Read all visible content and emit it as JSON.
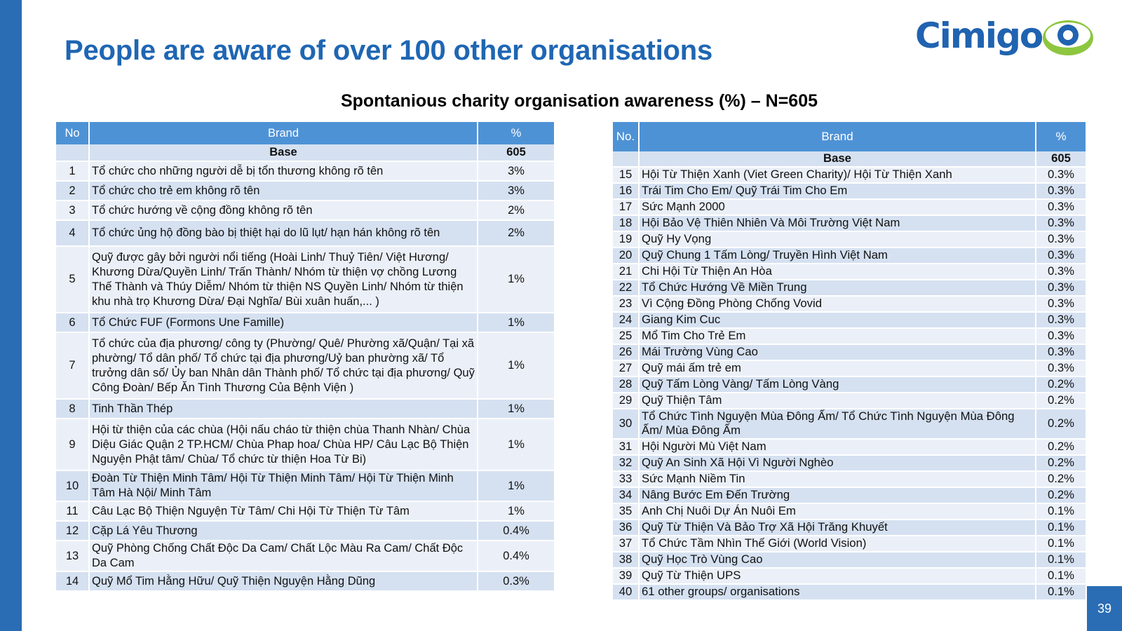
{
  "title": "People are aware of over 100 other organisations",
  "subtitle": "Spontanious charity organisation awareness (%) – N=605",
  "logo": {
    "text": "Cimigo",
    "icon": "eye-icon",
    "colors": {
      "blue": "#2063b0",
      "green": "#8dc63f"
    }
  },
  "page_number": "39",
  "colors": {
    "header": "#4e92d6",
    "row_dark": "#d5e1f1",
    "row_light": "#ebf0f8",
    "title": "#1f66b3",
    "side_bar": "#2a6db5"
  },
  "left_table": {
    "headers": {
      "no": "No",
      "brand": "Brand",
      "pct": "%"
    },
    "base": {
      "label": "Base",
      "value": "605"
    },
    "rows": [
      {
        "no": "1",
        "brand": "Tổ chức cho những người dễ bị tổn thương không rõ tên",
        "pct": "3%"
      },
      {
        "no": "2",
        "brand": "Tổ chức cho trẻ em không rõ tên",
        "pct": "3%"
      },
      {
        "no": "3",
        "brand": "Tổ chức hướng về cộng đồng không rõ tên",
        "pct": "2%"
      },
      {
        "no": "4",
        "brand": "Tổ chức ủng hộ đồng bào bị thiệt hại do lũ lụt/ hạn hán không rõ tên",
        "pct": "2%"
      },
      {
        "no": "5",
        "brand": "Quỹ được gây bởi người nổi tiếng (Hoài Linh/ Thuỷ Tiên/ Việt Hương/ Khương Dừa/Quyền Linh/ Trấn Thành/ Nhóm từ thiện vợ chồng Lương Thế Thành và Thúy Diễm/  Nhóm từ thiện NS Quyền Linh/ Nhóm từ thiện khu nhà trọ Khương Dừa/ Đại Nghĩa/ Bùi xuân huấn,... )",
        "pct": "1%"
      },
      {
        "no": "6",
        "brand": "Tổ Chức FUF (Formons Une Famille)",
        "pct": "1%"
      },
      {
        "no": "7",
        "brand": "Tổ chức của địa phương/ công ty (Phường/ Quê/ Phường xã/Quận/ Tại xã phường/ Tổ dân phố/ Tổ chức tại địa phương/Uỷ ban phường xã/ Tổ trưởng dân số/ Ủy ban Nhân dân Thành phố/ Tổ chức tại địa phương/ Quỹ Công Đoàn/ Bếp Ăn Tình Thương Của Bệnh Viện )",
        "pct": "1%"
      },
      {
        "no": "8",
        "brand": "Tinh Thần Thép",
        "pct": "1%"
      },
      {
        "no": "9",
        "brand": "Hội từ thiện của các chùa (Hội nấu cháo từ thiện chùa Thanh Nhàn/ Chùa Diệu Giác Quận 2 TP.HCM/ Chùa Phap hoa/ Chùa HP/ Câu Lạc Bộ Thiện Nguyện Phật tâm/ Chùa/ Tổ chức từ thiện Hoa Từ Bi)",
        "pct": "1%"
      },
      {
        "no": "10",
        "brand": "Đoàn Từ Thiện Minh Tâm/ Hội Từ Thiện Minh Tâm/ Hội Từ Thiện Minh Tâm Hà Nội/ Minh Tâm",
        "pct": "1%"
      },
      {
        "no": "11",
        "brand": "Câu Lạc Bộ Thiện Nguyện Từ Tâm/ Chi Hội Từ Thiện Từ Tâm",
        "pct": "1%"
      },
      {
        "no": "12",
        "brand": "Cặp Lá Yêu Thương",
        "pct": "0.4%"
      },
      {
        "no": "13",
        "brand": "Quỹ Phòng Chống Chất Độc Da Cam/ Chất Lộc Màu Ra Cam/ Chất Độc Da Cam",
        "pct": "0.4%"
      },
      {
        "no": "14",
        "brand": "Quỹ Mổ Tim Hằng Hữu/ Quỹ Thiện Nguyện Hằng Dũng",
        "pct": "0.3%"
      }
    ]
  },
  "right_table": {
    "headers": {
      "no": "No.",
      "brand": "Brand",
      "pct": "%"
    },
    "base": {
      "label": "Base",
      "value": "605"
    },
    "rows": [
      {
        "no": "15",
        "brand": "Hội Từ Thiện Xanh (Viet Green Charity)/ Hội Từ Thiện Xanh",
        "pct": "0.3%"
      },
      {
        "no": "16",
        "brand": "Trái Tim Cho Em/ Quỹ Trái Tim Cho Em",
        "pct": "0.3%"
      },
      {
        "no": "17",
        "brand": "Sức Mạnh 2000",
        "pct": "0.3%"
      },
      {
        "no": "18",
        "brand": "Hội Bảo Vệ Thiên Nhiên Và Môi Trường Việt Nam",
        "pct": "0.3%"
      },
      {
        "no": "19",
        "brand": "Quỹ Hy Vọng",
        "pct": "0.3%"
      },
      {
        "no": "20",
        "brand": "Quỹ Chung 1 Tấm Lòng/ Truyền Hình Việt Nam",
        "pct": "0.3%"
      },
      {
        "no": "21",
        "brand": "Chi Hội Từ Thiện An Hòa",
        "pct": "0.3%"
      },
      {
        "no": "22",
        "brand": "Tổ Chức Hướng Về Miền Trung",
        "pct": "0.3%"
      },
      {
        "no": "23",
        "brand": "Vì Cộng Đồng Phòng Chống Vovid",
        "pct": "0.3%"
      },
      {
        "no": "24",
        "brand": "Giang Kim Cuc",
        "pct": "0.3%"
      },
      {
        "no": "25",
        "brand": "Mổ Tim Cho Trẻ Em",
        "pct": "0.3%"
      },
      {
        "no": "26",
        "brand": "Mái Trường Vùng Cao",
        "pct": "0.3%"
      },
      {
        "no": "27",
        "brand": "Quỹ mái ấm trẻ em",
        "pct": "0.3%"
      },
      {
        "no": "28",
        "brand": "Quỹ Tấm Lòng Vàng/ Tấm Lòng Vàng",
        "pct": "0.2%"
      },
      {
        "no": "29",
        "brand": "Quỹ Thiện Tâm",
        "pct": "0.2%"
      },
      {
        "no": "30",
        "brand": "Tổ Chức Tình Nguyện Mùa Đông Ấm/ Tổ Chức Tình Nguyện Mùa Đông Ấm/ Mùa Đông Ấm",
        "pct": "0.2%"
      },
      {
        "no": "31",
        "brand": "Hội Người Mù Việt Nam",
        "pct": "0.2%"
      },
      {
        "no": "32",
        "brand": "Quỹ An Sinh Xã Hội Vì Người Nghèo",
        "pct": "0.2%"
      },
      {
        "no": "33",
        "brand": "Sức Mạnh Niềm Tin",
        "pct": "0.2%"
      },
      {
        "no": "34",
        "brand": "Nâng Bước Em Đến Trường",
        "pct": "0.2%"
      },
      {
        "no": "35",
        "brand": "Anh Chị Nuôi Dự Án Nuôi Em",
        "pct": "0.1%"
      },
      {
        "no": "36",
        "brand": "Quỹ Từ Thiện Và Bảo Trợ Xã Hội Trăng Khuyết",
        "pct": "0.1%"
      },
      {
        "no": "37",
        "brand": "Tổ Chức Tầm Nhìn Thế Giới (World Vision)",
        "pct": "0.1%"
      },
      {
        "no": "38",
        "brand": "Quỹ Học Trò Vùng Cao",
        "pct": "0.1%"
      },
      {
        "no": "39",
        "brand": "Quỹ Từ Thiện UPS",
        "pct": "0.1%"
      },
      {
        "no": "40",
        "brand": "61 other groups/ organisations",
        "pct": "0.1%"
      }
    ]
  }
}
